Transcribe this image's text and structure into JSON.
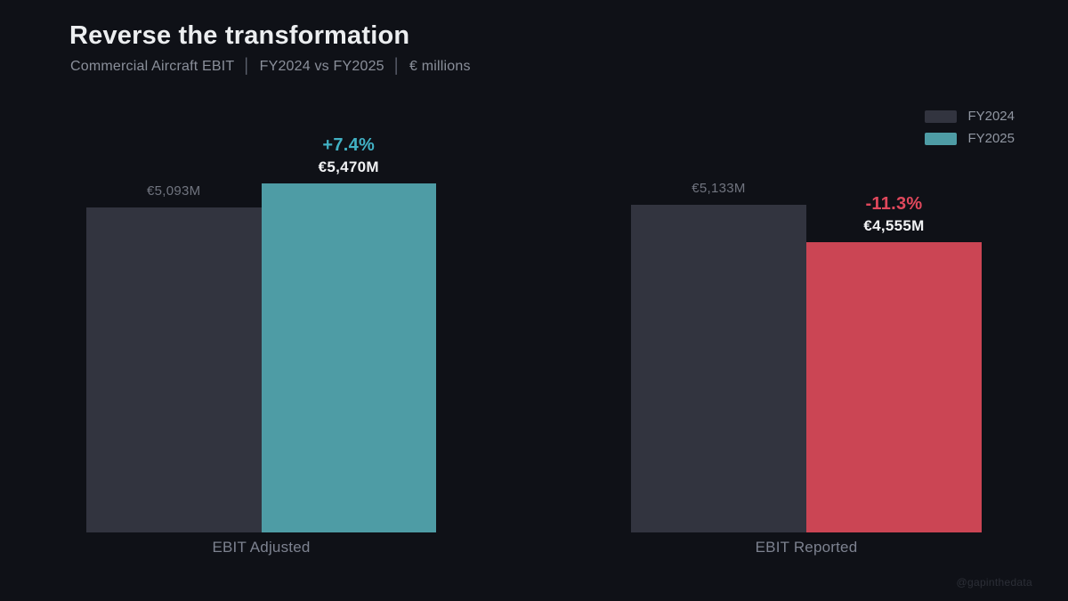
{
  "header": {
    "title": "Reverse the transformation",
    "subtitle_left": "Commercial Aircraft EBIT",
    "subtitle_mid": "FY2024 vs FY2025",
    "subtitle_right": "€ millions",
    "separator": "│"
  },
  "legend": {
    "items": [
      {
        "label": "FY2024",
        "color": "#32343f"
      },
      {
        "label": "FY2025",
        "color": "#4e9ca5"
      }
    ]
  },
  "chart_data": {
    "type": "bar",
    "title": "Reverse the transformation",
    "subtitle": "Commercial Aircraft EBIT │ FY2024 vs FY2025 │ € millions",
    "unit": "€ millions",
    "categories": [
      "EBIT Adjusted",
      "EBIT Reported"
    ],
    "series": [
      {
        "name": "FY2024",
        "values": [
          5093,
          5133
        ]
      },
      {
        "name": "FY2025",
        "values": [
          5470,
          4555
        ]
      }
    ],
    "ylim": [
      0,
      5600
    ],
    "grid": false,
    "legend_position": "top-right",
    "colors": {
      "fy2024_bar": "#32343f",
      "fy2025_up_bar": "#4e9ca5",
      "fy2025_down_bar": "#cb4554",
      "up_text": "#41b1c4",
      "down_text": "#e0485c",
      "background": "#0f1117"
    },
    "groups": [
      {
        "label": "EBIT Adjusted",
        "bars": [
          {
            "series": "FY2024",
            "value": 5093,
            "display": "€5,093M",
            "color": "#32343f"
          },
          {
            "series": "FY2025",
            "value": 5470,
            "display": "€5,470M",
            "color": "#4e9ca5",
            "change": "+7.4%",
            "change_color": "#41b1c4"
          }
        ]
      },
      {
        "label": "EBIT Reported",
        "bars": [
          {
            "series": "FY2024",
            "value": 5133,
            "display": "€5,133M",
            "color": "#32343f"
          },
          {
            "series": "FY2025",
            "value": 4555,
            "display": "€4,555M",
            "color": "#cb4554",
            "change": "-11.3%",
            "change_color": "#e0485c"
          }
        ]
      }
    ]
  },
  "watermark": "@gapinthedata"
}
